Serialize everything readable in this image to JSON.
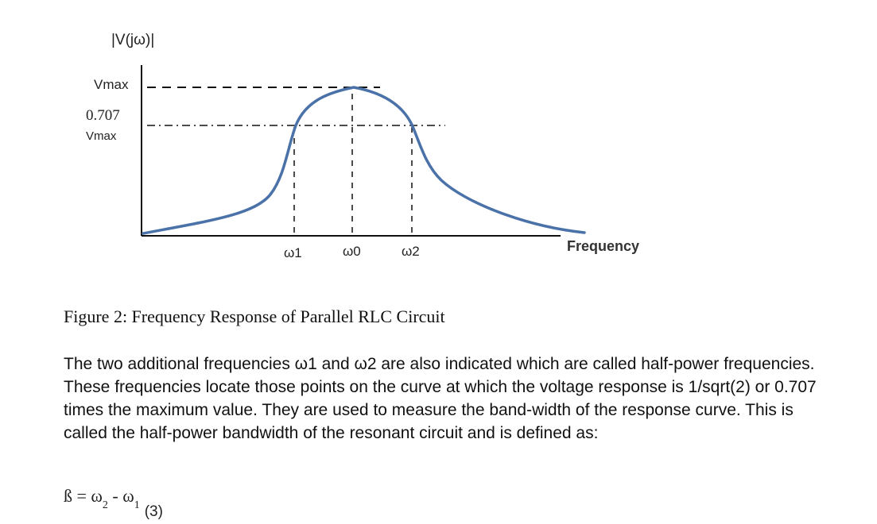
{
  "figure": {
    "y_axis_label": "|V(jω)|",
    "v_max_label": "Vmax",
    "half_power_value": "0.707",
    "half_power_vmax": "Vmax",
    "x_ticks": [
      "ω1",
      "ω0",
      "ω2"
    ],
    "x_axis_label": "Frequency",
    "curve_color": "#4a72a8"
  },
  "caption": "Figure 2: Frequency Response of Parallel RLC Circuit",
  "paragraph": "The two additional frequencies ω1 and ω2 are also indicated which are called half-power frequencies. These frequencies locate those points on the curve at which the voltage response is 1/sqrt(2) or 0.707 times the maximum value. They are used to measure the band-width of the response curve. This is called the half-power bandwidth of the resonant circuit and is defined as:",
  "equation": {
    "lhs": "ß = ω",
    "sub2": "2",
    "minus": " - ω",
    "sub1": "1",
    "number": "(3)"
  }
}
